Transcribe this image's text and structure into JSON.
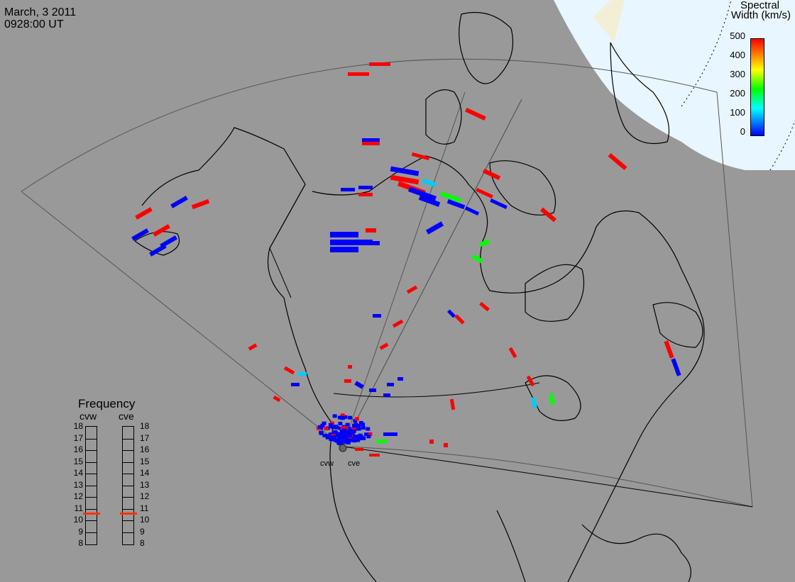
{
  "header": {
    "date": "March, 3 2011",
    "time": "0928:00 UT"
  },
  "colorbar": {
    "title_line1": "Spectral",
    "title_line2": "Width (km/s)",
    "ticks": [
      "500",
      "400",
      "300",
      "200",
      "100",
      "0"
    ]
  },
  "frequency": {
    "title": "Frequency",
    "radars": [
      "cvw",
      "cve"
    ],
    "ticks": [
      "18",
      "17",
      "16",
      "15",
      "14",
      "13",
      "12",
      "11",
      "10",
      "9",
      "8"
    ],
    "current_mhz": [
      10.6,
      10.6
    ]
  },
  "radar_sites": [
    "cvw",
    "cve"
  ],
  "colors": {
    "land": "#999999",
    "ocean_light": "#e8f6ff",
    "coastline": "#000000",
    "fov_outline": "#555555",
    "marker": "#ff3300"
  },
  "chart_data": {
    "type": "map",
    "variable": "Spectral Width",
    "units": "km/s",
    "scale": [
      0,
      500
    ]
  }
}
